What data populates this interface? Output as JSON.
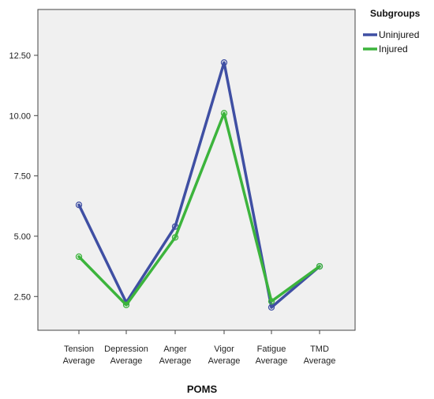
{
  "chart_data": {
    "type": "line",
    "xlabel": "POMS",
    "ylabel": "",
    "ylim": [
      1.1,
      14.4
    ],
    "yticks": [
      "2.50",
      "5.00",
      "7.50",
      "10.00",
      "12.50"
    ],
    "ytick_values": [
      2.5,
      5.0,
      7.5,
      10.0,
      12.5
    ],
    "categories": [
      [
        "Tension",
        "Average"
      ],
      [
        "Depression",
        "Average"
      ],
      [
        "Anger",
        "Average"
      ],
      [
        "Vigor",
        "Average"
      ],
      [
        "Fatigue",
        "Average"
      ],
      [
        "TMD",
        "Average"
      ]
    ],
    "legend_title": "Subgroups",
    "legend_position": "top-right",
    "grid": false,
    "background": "#f0f0f0",
    "series": [
      {
        "name": "Uninjured",
        "color": "#3f4fa3",
        "values": [
          6.3,
          2.25,
          5.4,
          12.2,
          2.05,
          3.75
        ]
      },
      {
        "name": "Injured",
        "color": "#3cb43c",
        "values": [
          4.15,
          2.15,
          4.95,
          10.1,
          2.3,
          3.75
        ]
      }
    ]
  }
}
